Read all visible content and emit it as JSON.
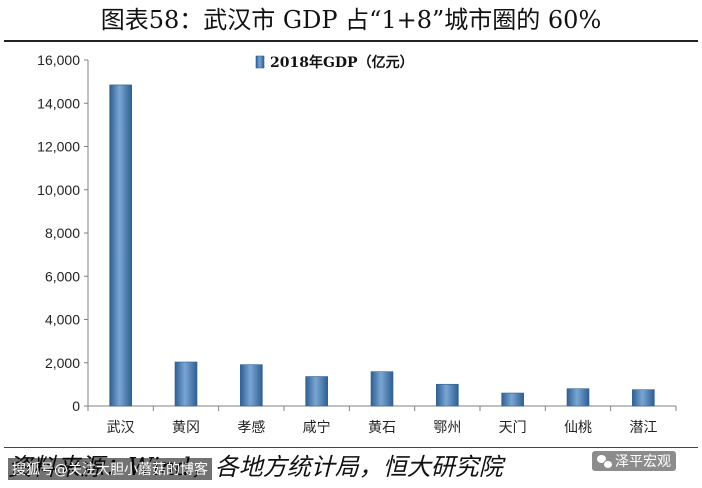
{
  "title": "图表58：武汉市 GDP 占“1+8”城市圈的 60%",
  "source": "资料来源：Wind，各地方统计局，恒大研究院",
  "overlays": {
    "watermark_left": "搜狐号@关注大胆小蘑菇的博客",
    "watermark_right": "泽平宏观"
  },
  "colors": {
    "bar": "#4a7fb5",
    "bar_dark": "#2f5f91",
    "axis": "#808080"
  },
  "chart_data": {
    "type": "bar",
    "categories": [
      "武汉",
      "黄冈",
      "孝感",
      "咸宁",
      "黄石",
      "鄂州",
      "天门",
      "仙桃",
      "潜江"
    ],
    "series": [
      {
        "name": "2018年GDP（亿元）",
        "values": [
          14847,
          2035,
          1912,
          1362,
          1588,
          1006,
          600,
          800,
          755
        ]
      }
    ],
    "ylim": [
      0,
      16000
    ],
    "yticks": [
      "0",
      "2,000",
      "4,000",
      "6,000",
      "8,000",
      "10,000",
      "12,000",
      "14,000",
      "16,000"
    ],
    "legend_position": "top-center",
    "grid": false
  }
}
